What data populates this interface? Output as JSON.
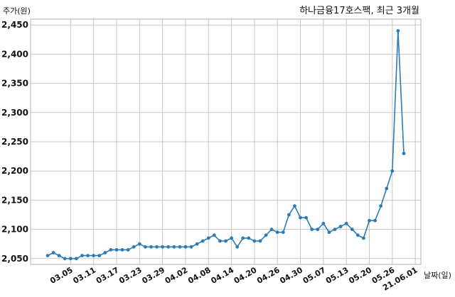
{
  "chart_data": {
    "type": "line",
    "title": "하나금융17호스팩, 최근 3개월",
    "ylabel": "주가(원)",
    "xlabel": "날짜(일)",
    "ylim": [
      2040,
      2460
    ],
    "yticks": [
      2050,
      2100,
      2150,
      2200,
      2250,
      2300,
      2350,
      2400,
      2450
    ],
    "ytick_labels": [
      "2,050",
      "2,100",
      "2,150",
      "2,200",
      "2,250",
      "2,300",
      "2,350",
      "2,400",
      "2,450"
    ],
    "xticks": [
      {
        "i": 4,
        "label": "03.05"
      },
      {
        "i": 8,
        "label": "03.11"
      },
      {
        "i": 12,
        "label": "03.17"
      },
      {
        "i": 16,
        "label": "03.23"
      },
      {
        "i": 20,
        "label": "03.29"
      },
      {
        "i": 24,
        "label": "04.02"
      },
      {
        "i": 28,
        "label": "04.08"
      },
      {
        "i": 32,
        "label": "04.14"
      },
      {
        "i": 36,
        "label": "04.20"
      },
      {
        "i": 40,
        "label": "04.26"
      },
      {
        "i": 44,
        "label": "04.30"
      },
      {
        "i": 48,
        "label": "05.07"
      },
      {
        "i": 52,
        "label": "05.13"
      },
      {
        "i": 56,
        "label": "05.20"
      },
      {
        "i": 60,
        "label": "05.26"
      },
      {
        "i": 64,
        "label": "21.06.01"
      }
    ],
    "grid": true,
    "line_color": "#2b7bb9",
    "series": [
      {
        "values": [
          2055,
          2060,
          2055,
          2050,
          2050,
          2050,
          2055,
          2055,
          2055,
          2055,
          2060,
          2065,
          2065,
          2065,
          2065,
          2070,
          2075,
          2070,
          2070,
          2070,
          2070,
          2070,
          2070,
          2070,
          2070,
          2070,
          2075,
          2080,
          2085,
          2090,
          2080,
          2080,
          2085,
          2070,
          2085,
          2085,
          2080,
          2080,
          2090,
          2100,
          2095,
          2095,
          2125,
          2140,
          2120,
          2120,
          2100,
          2100,
          2110,
          2095,
          2100,
          2105,
          2110,
          2100,
          2090,
          2085,
          2115,
          2115,
          2140,
          2170,
          2200,
          2440,
          2230
        ]
      }
    ]
  }
}
